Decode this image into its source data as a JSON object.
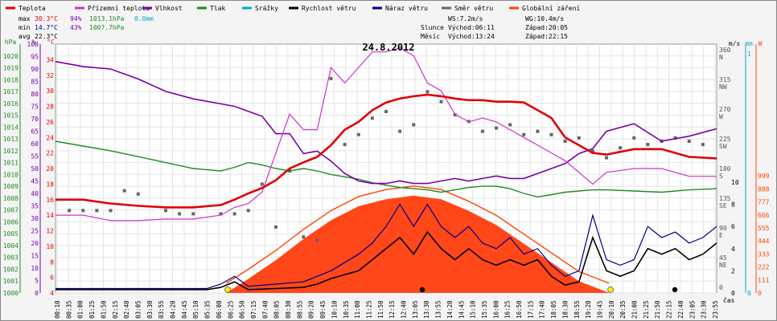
{
  "chart_data": {
    "type": "line",
    "title": "24.8.2012",
    "legend": [
      {
        "name": "Teplota",
        "color": "#e00000"
      },
      {
        "name": "Přízemní teplota",
        "color": "#cc33cc"
      },
      {
        "name": "Vlhkost",
        "color": "#7700aa"
      },
      {
        "name": "Tlak",
        "color": "#228822"
      },
      {
        "name": "Srážky",
        "color": "#00aacc"
      },
      {
        "name": "Rychlost větru",
        "color": "#000000"
      },
      {
        "name": "Náraz větru",
        "color": "#000088"
      },
      {
        "name": "Směr větru",
        "color": "#666666"
      },
      {
        "name": "Globální záření",
        "color": "#ff4400"
      }
    ],
    "stats": {
      "max": {
        "label": "max",
        "temp": "30.3°C",
        "hum": "94%",
        "press": "1013.1hPa",
        "rain": "0.0mm"
      },
      "min": {
        "label": "min",
        "temp": "14.7°C",
        "hum": "43%",
        "press": "1007.7hPa"
      },
      "avg": {
        "label": "avg",
        "temp": "22.3°C"
      }
    },
    "wind_info": {
      "ws": "WS:7.2m/s",
      "wg": "WG:10.4m/s"
    },
    "sun": {
      "label": "Slunce",
      "rise": "Východ:06:11",
      "set": "Západ:20:05"
    },
    "moon": {
      "label": "Měsíc",
      "rise": "Východ:13:24",
      "set": "Západ:22:15"
    },
    "xlabel": "čas",
    "x_ticks": [
      "00:10",
      "00:35",
      "01:00",
      "01:25",
      "01:50",
      "02:15",
      "02:40",
      "03:05",
      "03:30",
      "03:55",
      "04:20",
      "04:45",
      "05:10",
      "05:35",
      "06:00",
      "06:25",
      "06:50",
      "07:15",
      "07:40",
      "08:05",
      "08:30",
      "08:55",
      "09:20",
      "09:45",
      "10:10",
      "10:35",
      "11:00",
      "11:25",
      "11:50",
      "12:15",
      "12:40",
      "13:05",
      "13:30",
      "13:55",
      "14:20",
      "14:45",
      "15:10",
      "15:35",
      "16:00",
      "16:25",
      "16:50",
      "17:15",
      "17:40",
      "18:05",
      "18:30",
      "18:55",
      "19:20",
      "19:45",
      "20:10",
      "20:35",
      "21:00",
      "21:25",
      "21:50",
      "22:15",
      "22:40",
      "23:05",
      "23:30",
      "23:55"
    ],
    "axes": {
      "press": {
        "unit": "hPa",
        "range": [
          1000,
          1021
        ],
        "ticks": [
          "1000",
          "1001",
          "1002",
          "1003",
          "1004",
          "1005",
          "1006",
          "1007",
          "1008",
          "1009",
          "1010",
          "1011",
          "1012",
          "1013",
          "1014",
          "1015",
          "1016",
          "1017",
          "1018",
          "1019",
          "1020"
        ]
      },
      "hum": {
        "unit": "%",
        "range": [
          0,
          100
        ],
        "ticks": [
          "0",
          "5",
          "10",
          "15",
          "20",
          "25",
          "30",
          "35",
          "40",
          "45",
          "50",
          "55",
          "60",
          "65",
          "70",
          "75",
          "80",
          "85",
          "90",
          "95",
          "100"
        ]
      },
      "temp": {
        "unit": "°C",
        "range": [
          4,
          36
        ],
        "ticks": [
          "4",
          "6",
          "8",
          "10",
          "12",
          "14",
          "16",
          "18",
          "20",
          "22",
          "24",
          "26",
          "28",
          "30",
          "32",
          "34"
        ]
      },
      "dir": {
        "range": [
          0,
          360
        ],
        "ticks": [
          {
            "v": "360",
            "l": "N"
          },
          {
            "v": "315",
            "l": "NW"
          },
          {
            "v": "270",
            "l": "W"
          },
          {
            "v": "225",
            "l": "SW"
          },
          {
            "v": "180",
            "l": "S"
          },
          {
            "v": "135",
            "l": "SE"
          },
          {
            "v": "90",
            "l": "E"
          },
          {
            "v": "45",
            "l": "NE"
          },
          {
            "v": "0",
            "l": ""
          }
        ]
      },
      "speed": {
        "unit": "m/s",
        "range": [
          0,
          10
        ],
        "ticks": [
          "0",
          "2",
          "4",
          "6",
          "8",
          "10"
        ]
      },
      "rain": {
        "unit": "mm",
        "range": [
          0,
          1
        ],
        "ticks": [
          "1",
          "0"
        ]
      },
      "rad": {
        "unit": "W",
        "range": [
          0,
          1000
        ],
        "ticks": [
          "0",
          "111",
          "222",
          "333",
          "444",
          "555",
          "666",
          "777",
          "888",
          "999"
        ]
      }
    },
    "series": [
      {
        "name": "Teplota",
        "unit": "°C",
        "x": [
          0,
          1,
          2,
          3,
          4,
          5,
          6,
          6.5,
          7,
          7.5,
          8,
          8.5,
          9,
          9.5,
          10,
          10.5,
          11,
          11.5,
          12,
          12.5,
          13,
          13.5,
          14,
          14.5,
          15,
          15.5,
          16,
          16.5,
          17,
          17.5,
          18,
          18.5,
          19,
          19.5,
          20,
          21,
          22,
          23,
          24
        ],
        "values": [
          16,
          16,
          15.5,
          15.2,
          15,
          15,
          15.3,
          16,
          16.8,
          17.5,
          18.5,
          20,
          20.8,
          21.5,
          23,
          25,
          26,
          27.5,
          28.5,
          29,
          29.3,
          29.5,
          29.3,
          29,
          28.8,
          28.8,
          28.6,
          28.6,
          28.5,
          27.5,
          26.5,
          24,
          23,
          22,
          21.8,
          22.5,
          22.5,
          21.5,
          21.3
        ]
      },
      {
        "name": "Přízemní teplota",
        "unit": "°C",
        "x": [
          0,
          1,
          2,
          3,
          4,
          5,
          6,
          6.5,
          7,
          7.5,
          8,
          8.5,
          9,
          9.5,
          10,
          10.5,
          11,
          11.5,
          12,
          12.5,
          13,
          13.5,
          14,
          14.5,
          15,
          15.5,
          16,
          16.5,
          17,
          17.5,
          18,
          18.5,
          19,
          19.5,
          20,
          21,
          22,
          23,
          24
        ],
        "values": [
          14,
          14,
          13.3,
          13.3,
          13.5,
          13.5,
          14,
          15,
          15.5,
          17,
          22,
          27,
          25,
          25,
          33,
          31,
          33,
          35,
          35,
          35.5,
          34.5,
          31,
          30,
          27,
          26,
          26.5,
          26,
          25,
          24,
          23,
          22,
          21,
          19.5,
          18,
          19.5,
          20,
          20,
          19,
          19
        ]
      },
      {
        "name": "Vlhkost",
        "unit": "%",
        "x": [
          0,
          1,
          2,
          3,
          4,
          5,
          6,
          6.5,
          7,
          7.5,
          8,
          8.5,
          9,
          9.5,
          10,
          10.5,
          11,
          11.5,
          12,
          12.5,
          13,
          13.5,
          14,
          14.5,
          15,
          15.5,
          16,
          16.5,
          17,
          17.5,
          18,
          18.5,
          19,
          19.5,
          20,
          21,
          22,
          23,
          24
        ],
        "values": [
          93,
          91,
          90,
          86,
          81,
          78,
          76,
          75,
          73,
          71,
          64,
          64,
          56,
          57,
          53,
          48,
          45,
          44,
          44,
          45,
          44,
          44,
          45,
          46,
          45,
          46,
          47,
          46,
          46,
          48,
          50,
          52,
          56,
          58,
          65,
          68,
          61,
          63,
          66
        ]
      },
      {
        "name": "Tlak",
        "unit": "hPa",
        "x": [
          0,
          1,
          2,
          3,
          4,
          5,
          6,
          6.5,
          7,
          7.5,
          8,
          8.5,
          9,
          9.5,
          10,
          10.5,
          11,
          11.5,
          12,
          12.5,
          13,
          13.5,
          14,
          14.5,
          15,
          15.5,
          16,
          16.5,
          17,
          17.5,
          18,
          18.5,
          19,
          19.5,
          20,
          21,
          22,
          23,
          24
        ],
        "values": [
          1012.8,
          1012.4,
          1012.0,
          1011.5,
          1011.0,
          1010.5,
          1010.3,
          1010.6,
          1011.0,
          1010.8,
          1010.5,
          1010.3,
          1010.5,
          1010.3,
          1010.0,
          1009.8,
          1009.6,
          1009.3,
          1009.1,
          1008.9,
          1008.8,
          1008.7,
          1008.5,
          1008.7,
          1008.9,
          1009.0,
          1009.0,
          1008.8,
          1008.4,
          1008.1,
          1008.3,
          1008.5,
          1008.6,
          1008.7,
          1008.7,
          1008.6,
          1008.5,
          1008.7,
          1008.8
        ]
      },
      {
        "name": "Rychlost větru",
        "unit": "m/s",
        "x": [
          0,
          2,
          4,
          5.5,
          6,
          6.5,
          7,
          8,
          9,
          9.5,
          10,
          11,
          11.5,
          12,
          12.5,
          13,
          13.5,
          14,
          14.5,
          15,
          15.5,
          16,
          16.5,
          17,
          17.5,
          18,
          18.5,
          19,
          19.5,
          20,
          20.5,
          21,
          21.5,
          22,
          22.5,
          23,
          23.5,
          24
        ],
        "values": [
          0.3,
          0.3,
          0.3,
          0.3,
          0.5,
          1,
          0.3,
          0.4,
          0.5,
          0.8,
          1.3,
          2,
          3,
          4,
          5,
          3.5,
          5.5,
          4,
          3,
          4,
          3,
          2.5,
          3,
          2.5,
          3,
          1.5,
          0.7,
          1,
          5,
          2,
          1.5,
          2,
          4,
          3.5,
          4,
          3,
          3.5,
          4.5
        ]
      },
      {
        "name": "Náraz větru",
        "unit": "m/s",
        "x": [
          0,
          2,
          4,
          5.5,
          6,
          6.5,
          7,
          8,
          9,
          9.5,
          10,
          11,
          11.5,
          12,
          12.5,
          13,
          13.5,
          14,
          14.5,
          15,
          15.5,
          16,
          16.5,
          17,
          17.5,
          18,
          18.5,
          19,
          19.5,
          20,
          20.5,
          21,
          21.5,
          22,
          22.5,
          23,
          23.5,
          24
        ],
        "values": [
          0.4,
          0.4,
          0.4,
          0.4,
          0.8,
          1.5,
          0.6,
          0.8,
          1,
          1.5,
          2,
          3.5,
          4.5,
          6,
          8,
          6,
          8,
          6,
          5,
          6,
          4.5,
          4,
          5,
          3.5,
          4,
          2.5,
          1.5,
          2,
          7,
          3,
          2.5,
          3,
          6,
          5,
          5.5,
          4.5,
          5,
          6
        ]
      },
      {
        "name": "Globální záření",
        "unit": "W",
        "x": [
          6.2,
          7,
          8,
          9,
          10,
          11,
          12,
          13,
          14,
          15,
          16,
          17,
          18,
          19,
          20.1
        ],
        "values": [
          0,
          120,
          280,
          460,
          620,
          740,
          800,
          830,
          800,
          700,
          580,
          420,
          260,
          100,
          0
        ]
      },
      {
        "name": "Směr větru",
        "unit": "°",
        "x": [
          0.5,
          1,
          1.5,
          2,
          2.5,
          3,
          4,
          4.5,
          5,
          6,
          6.5,
          7,
          7.5,
          8,
          8.5,
          9,
          9.5,
          10,
          10.5,
          11,
          11.5,
          12,
          12.5,
          13,
          13.5,
          14,
          14.5,
          15,
          15.5,
          16,
          16.5,
          17,
          17.5,
          18,
          18.5,
          19,
          19.5,
          20,
          20.5,
          21,
          21.5,
          22,
          22.5,
          23,
          23.5
        ],
        "values": [
          120,
          120,
          120,
          120,
          150,
          145,
          120,
          115,
          115,
          115,
          115,
          120,
          160,
          95,
          180,
          80,
          75,
          320,
          220,
          235,
          260,
          270,
          240,
          250,
          300,
          285,
          265,
          255,
          240,
          245,
          250,
          235,
          240,
          235,
          225,
          230,
          210,
          200,
          215,
          230,
          220,
          225,
          230,
          225,
          220
        ]
      }
    ]
  }
}
